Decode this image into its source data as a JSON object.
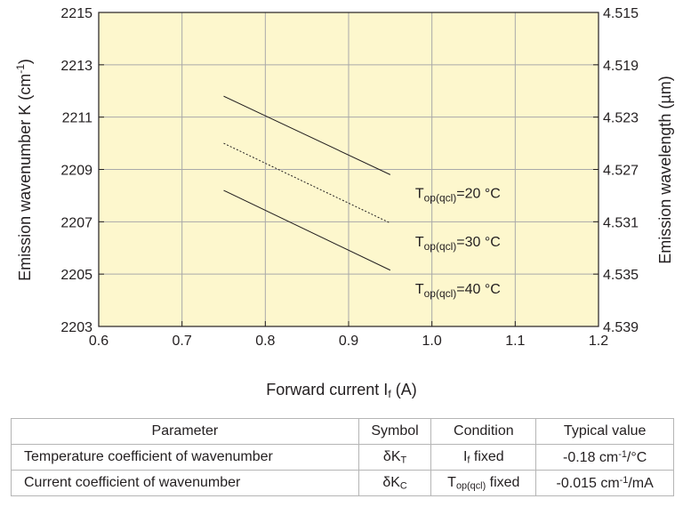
{
  "chart_data": {
    "type": "line",
    "xlabel_main": "Forward current I",
    "xlabel_sub": "f",
    "xlabel_unit": "(A)",
    "ylabel_left": "Emission wavenumber K (cm",
    "ylabel_left_exp": "-1",
    "ylabel_left_close": ")",
    "ylabel_right": "Emission wavelength (µm)",
    "xlim": [
      0.6,
      1.2
    ],
    "ylim": [
      2203,
      2215
    ],
    "x_ticks": [
      "0.6",
      "0.7",
      "0.8",
      "0.9",
      "1.0",
      "1.1",
      "1.2"
    ],
    "y_ticks": [
      "2203",
      "2205",
      "2207",
      "2209",
      "2211",
      "2213",
      "2215"
    ],
    "y2_ticks": [
      "4.539",
      "4.535",
      "4.531",
      "4.527",
      "4.523",
      "4.519",
      "4.515"
    ],
    "grid": true,
    "background": "#fdf7cd",
    "series": [
      {
        "name_main": "T",
        "name_sub": "op(qcl)",
        "name_rest": "=20 °C",
        "style": "solid",
        "x": [
          0.75,
          0.95
        ],
        "y": [
          2211.8,
          2208.8
        ]
      },
      {
        "name_main": "T",
        "name_sub": "op(qcl)",
        "name_rest": "=30 °C",
        "style": "dotted",
        "x": [
          0.75,
          0.95
        ],
        "y": [
          2210.0,
          2206.95
        ]
      },
      {
        "name_main": "T",
        "name_sub": "op(qcl)",
        "name_rest": "=40 °C",
        "style": "solid",
        "x": [
          0.75,
          0.95
        ],
        "y": [
          2208.2,
          2205.15
        ]
      }
    ]
  },
  "table": {
    "headers": [
      "Parameter",
      "Symbol",
      "Condition",
      "Typical value"
    ],
    "rows": [
      {
        "parameter": "Temperature coefficient of wavenumber",
        "symbol_main": "δK",
        "symbol_sub": "T",
        "condition_main": "I",
        "condition_sub": "f",
        "condition_rest": " fixed",
        "value_main": "-0.18 cm",
        "value_sup": "-1",
        "value_rest": "/°C"
      },
      {
        "parameter": "Current coefficient of wavenumber",
        "symbol_main": "δK",
        "symbol_sub": "C",
        "condition_main": "T",
        "condition_sub": "op(qcl)",
        "condition_rest": " fixed",
        "value_main": "-0.015 cm",
        "value_sup": "-1",
        "value_rest": "/mA"
      }
    ]
  }
}
